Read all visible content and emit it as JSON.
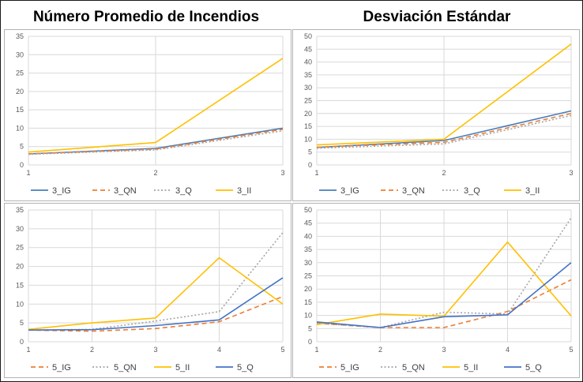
{
  "titles": {
    "left": "Número Promedio de Incendios",
    "right": "Desviación Estándar"
  },
  "chart_data": [
    {
      "type": "line",
      "panel": "top-left",
      "title": "Número Promedio de Incendios",
      "categories": [
        "1",
        "2",
        "3"
      ],
      "ylim": [
        0,
        35
      ],
      "yticks": [
        0,
        5,
        10,
        15,
        20,
        25,
        30,
        35
      ],
      "grid": true,
      "legend": "bottom",
      "series": [
        {
          "name": "3_IG",
          "values": [
            3,
            4.5,
            10
          ],
          "color": "#4a7ebb",
          "dash": "solid"
        },
        {
          "name": "3_QN",
          "values": [
            3,
            4.3,
            9.7
          ],
          "color": "#ed7d31",
          "dash": "dashed"
        },
        {
          "name": "3_Q",
          "values": [
            2.9,
            4.1,
            9.3
          ],
          "color": "#a5a5a5",
          "dash": "dotted"
        },
        {
          "name": "3_II",
          "values": [
            3.5,
            6.1,
            29
          ],
          "color": "#ffc000",
          "dash": "solid"
        }
      ]
    },
    {
      "type": "line",
      "panel": "top-right",
      "title": "Desviación Estándar",
      "categories": [
        "1",
        "2",
        "3"
      ],
      "ylim": [
        0,
        50
      ],
      "yticks": [
        0,
        5,
        10,
        15,
        20,
        25,
        30,
        35,
        40,
        45,
        50
      ],
      "grid": true,
      "legend": "bottom",
      "series": [
        {
          "name": "3_IG",
          "values": [
            6.8,
            9.5,
            21
          ],
          "color": "#4a7ebb",
          "dash": "solid"
        },
        {
          "name": "3_QN",
          "values": [
            6.9,
            8.8,
            20
          ],
          "color": "#ed7d31",
          "dash": "dashed"
        },
        {
          "name": "3_Q",
          "values": [
            6.5,
            8.2,
            19.2
          ],
          "color": "#a5a5a5",
          "dash": "dotted"
        },
        {
          "name": "3_II",
          "values": [
            7.8,
            10,
            47
          ],
          "color": "#ffc000",
          "dash": "solid"
        }
      ]
    },
    {
      "type": "line",
      "panel": "bottom-left",
      "title": "Número Promedio de Incendios",
      "categories": [
        "1",
        "2",
        "3",
        "4",
        "5"
      ],
      "ylim": [
        0,
        35
      ],
      "yticks": [
        0,
        5,
        10,
        15,
        20,
        25,
        30,
        35
      ],
      "grid": true,
      "legend": "bottom",
      "series": [
        {
          "name": "5_IG",
          "values": [
            3.1,
            2.8,
            3.5,
            5.3,
            12
          ],
          "color": "#ed7d31",
          "dash": "dashed"
        },
        {
          "name": "5_QN",
          "values": [
            3.1,
            3.3,
            5.5,
            8,
            29
          ],
          "color": "#a5a5a5",
          "dash": "dotted"
        },
        {
          "name": "5_II",
          "values": [
            3.3,
            5,
            6.3,
            22.3,
            10
          ],
          "color": "#ffc000",
          "dash": "solid"
        },
        {
          "name": "5_Q",
          "values": [
            3.1,
            3.2,
            4.3,
            5.8,
            17
          ],
          "color": "#4472c4",
          "dash": "solid"
        }
      ]
    },
    {
      "type": "line",
      "panel": "bottom-right",
      "title": "Desviación Estándar",
      "categories": [
        "1",
        "2",
        "3",
        "4",
        "5"
      ],
      "ylim": [
        0,
        50
      ],
      "yticks": [
        0,
        5,
        10,
        15,
        20,
        25,
        30,
        35,
        40,
        45,
        50
      ],
      "grid": true,
      "legend": "bottom",
      "series": [
        {
          "name": "5_IG",
          "values": [
            7,
            5.4,
            5.4,
            11.5,
            23.5
          ],
          "color": "#ed7d31",
          "dash": "dashed"
        },
        {
          "name": "5_QN",
          "values": [
            7,
            5.4,
            11.2,
            10.5,
            47
          ],
          "color": "#a5a5a5",
          "dash": "dotted"
        },
        {
          "name": "5_II",
          "values": [
            6.5,
            10.5,
            9.7,
            37.8,
            9.8
          ],
          "color": "#ffc000",
          "dash": "solid"
        },
        {
          "name": "5_Q",
          "values": [
            7.5,
            5.4,
            9.5,
            10.2,
            30
          ],
          "color": "#4472c4",
          "dash": "solid"
        }
      ]
    }
  ]
}
